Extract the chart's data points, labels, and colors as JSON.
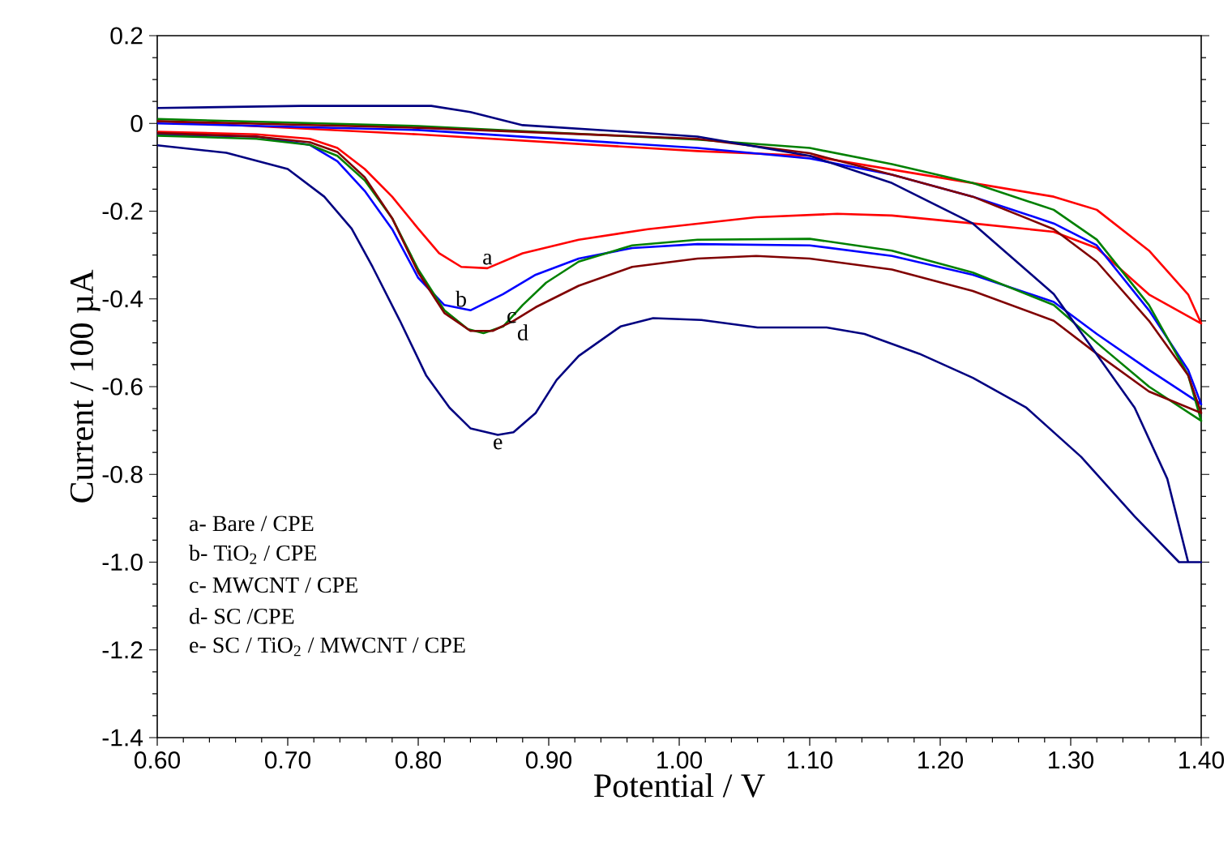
{
  "chart_data": {
    "type": "line",
    "xlabel": "Potential / V",
    "ylabel": "Current / 100 µA",
    "xlim": [
      0.6,
      1.4
    ],
    "ylim": [
      -1.4,
      0.2
    ],
    "xticks": [
      {
        "value": 0.6,
        "label": "0.60"
      },
      {
        "value": 0.7,
        "label": "0.70"
      },
      {
        "value": 0.8,
        "label": "0.80"
      },
      {
        "value": 0.9,
        "label": "0.90"
      },
      {
        "value": 1.0,
        "label": "1.00"
      },
      {
        "value": 1.1,
        "label": "1.10"
      },
      {
        "value": 1.2,
        "label": "1.20"
      },
      {
        "value": 1.3,
        "label": "1.30"
      },
      {
        "value": 1.4,
        "label": "1.40"
      }
    ],
    "yticks": [
      -1.4,
      -1.2,
      {
        "value": -1.0,
        "label": "-1.0"
      },
      -0.8,
      -0.6,
      -0.4,
      -0.2,
      0,
      0.2
    ],
    "series": [
      {
        "color": "#ff0000",
        "x": [
          0.6,
          0.8,
          1.014,
          1.1,
          1.225,
          1.287,
          1.32,
          1.36,
          1.39,
          1.4,
          1.36,
          1.32,
          1.287,
          1.225,
          1.163,
          1.121,
          1.059,
          0.976,
          0.923,
          0.88,
          0.853,
          0.833,
          0.816,
          0.8,
          0.78,
          0.759,
          0.738,
          0.717,
          0.676,
          0.6
        ],
        "values": [
          0.005,
          -0.025,
          -0.063,
          -0.074,
          -0.136,
          -0.167,
          -0.197,
          -0.29,
          -0.39,
          -0.456,
          -0.39,
          -0.284,
          -0.247,
          -0.228,
          -0.21,
          -0.206,
          -0.214,
          -0.241,
          -0.265,
          -0.296,
          -0.33,
          -0.327,
          -0.296,
          -0.24,
          -0.167,
          -0.104,
          -0.056,
          -0.035,
          -0.025,
          -0.019
        ]
      },
      {
        "color": "#0000ff",
        "x": [
          0.6,
          0.8,
          1.014,
          1.1,
          1.163,
          1.225,
          1.287,
          1.32,
          1.36,
          1.39,
          1.4,
          1.36,
          1.32,
          1.287,
          1.225,
          1.163,
          1.1,
          1.014,
          0.964,
          0.923,
          0.89,
          0.865,
          0.84,
          0.82,
          0.8,
          0.78,
          0.759,
          0.738,
          0.717,
          0.676,
          0.6
        ],
        "values": [
          0.0,
          -0.015,
          -0.056,
          -0.08,
          -0.117,
          -0.167,
          -0.228,
          -0.278,
          -0.426,
          -0.562,
          -0.64,
          -0.562,
          -0.48,
          -0.407,
          -0.345,
          -0.302,
          -0.278,
          -0.275,
          -0.284,
          -0.308,
          -0.345,
          -0.389,
          -0.426,
          -0.414,
          -0.352,
          -0.241,
          -0.154,
          -0.086,
          -0.049,
          -0.03,
          -0.025
        ]
      },
      {
        "color": "#008000",
        "x": [
          0.6,
          0.8,
          1.014,
          1.1,
          1.163,
          1.225,
          1.287,
          1.32,
          1.36,
          1.39,
          1.4,
          1.36,
          1.32,
          1.287,
          1.225,
          1.163,
          1.1,
          1.014,
          0.964,
          0.923,
          0.898,
          0.88,
          0.865,
          0.85,
          0.838,
          0.82,
          0.8,
          0.78,
          0.759,
          0.738,
          0.717,
          0.676,
          0.6
        ],
        "values": [
          0.01,
          -0.006,
          -0.037,
          -0.056,
          -0.093,
          -0.136,
          -0.197,
          -0.265,
          -0.414,
          -0.574,
          -0.678,
          -0.6,
          -0.5,
          -0.414,
          -0.34,
          -0.29,
          -0.263,
          -0.265,
          -0.278,
          -0.315,
          -0.363,
          -0.414,
          -0.463,
          -0.478,
          -0.469,
          -0.426,
          -0.333,
          -0.216,
          -0.13,
          -0.074,
          -0.049,
          -0.035,
          -0.028
        ]
      },
      {
        "color": "#800000",
        "x": [
          0.6,
          0.8,
          1.014,
          1.1,
          1.163,
          1.225,
          1.287,
          1.32,
          1.36,
          1.39,
          1.4,
          1.36,
          1.32,
          1.287,
          1.225,
          1.163,
          1.1,
          1.059,
          1.014,
          0.964,
          0.923,
          0.89,
          0.873,
          0.857,
          0.84,
          0.82,
          0.8,
          0.78,
          0.759,
          0.738,
          0.717,
          0.676,
          0.6
        ],
        "values": [
          0.005,
          -0.01,
          -0.035,
          -0.068,
          -0.117,
          -0.167,
          -0.241,
          -0.315,
          -0.45,
          -0.574,
          -0.66,
          -0.611,
          -0.525,
          -0.45,
          -0.382,
          -0.333,
          -0.308,
          -0.302,
          -0.308,
          -0.327,
          -0.37,
          -0.419,
          -0.45,
          -0.473,
          -0.473,
          -0.432,
          -0.34,
          -0.216,
          -0.123,
          -0.065,
          -0.043,
          -0.03,
          -0.022
        ]
      },
      {
        "color": "#000080",
        "x": [
          0.6,
          0.71,
          0.81,
          0.84,
          0.88,
          0.964,
          1.014,
          1.1,
          1.163,
          1.225,
          1.287,
          1.349,
          1.374,
          1.39,
          1.4,
          1.383,
          1.349,
          1.308,
          1.266,
          1.225,
          1.184,
          1.142,
          1.113,
          1.06,
          1.017,
          0.98,
          0.955,
          0.923,
          0.906,
          0.89,
          0.873,
          0.861,
          0.84,
          0.824,
          0.806,
          0.786,
          0.765,
          0.749,
          0.728,
          0.7,
          0.653,
          0.6
        ],
        "values": [
          0.035,
          0.04,
          0.04,
          0.026,
          -0.004,
          -0.02,
          -0.03,
          -0.074,
          -0.136,
          -0.228,
          -0.389,
          -0.648,
          -0.81,
          -1.0,
          -1.0,
          -1.0,
          -0.896,
          -0.76,
          -0.648,
          -0.58,
          -0.525,
          -0.48,
          -0.465,
          -0.465,
          -0.448,
          -0.444,
          -0.463,
          -0.53,
          -0.585,
          -0.66,
          -0.704,
          -0.71,
          -0.695,
          -0.648,
          -0.574,
          -0.45,
          -0.327,
          -0.24,
          -0.167,
          -0.104,
          -0.067,
          -0.05
        ]
      }
    ],
    "annotations": [
      {
        "text": "a",
        "x": 0.853,
        "y": -0.33
      },
      {
        "text": "b",
        "x": 0.84,
        "y": -0.426
      },
      {
        "text": "c",
        "x": 0.865,
        "y": -0.463
      },
      {
        "text": "d",
        "x": 0.873,
        "y": -0.45
      },
      {
        "text": "e",
        "x": 0.861,
        "y": -0.71
      },
      "a- Bare / CPE",
      "b- TiO$_{2}$ / CPE",
      "c- MWCNT / CPE",
      "d- SC /CPE",
      "e- SC / TiO$_{2}$ / MWCNT / CPE"
    ]
  }
}
